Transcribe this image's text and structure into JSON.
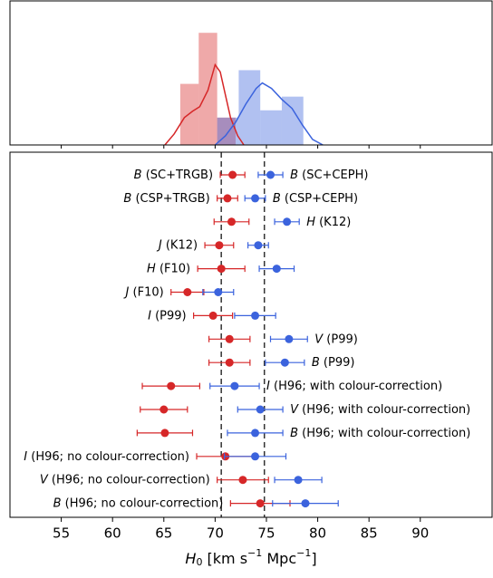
{
  "chart_data": [
    {
      "type": "histogram",
      "xlim": [
        50,
        97
      ],
      "xticks": [
        55,
        60,
        65,
        70,
        75,
        80,
        85,
        90
      ],
      "ylim": [
        0,
        158
      ],
      "alpha": 0.4,
      "series": [
        {
          "color": "#d62728",
          "bins": [
            66.6,
            68.4,
            70.2,
            72.0
          ],
          "counts": [
            67,
            123,
            30
          ],
          "kde": {
            "x": [
              65.1,
              66,
              67,
              67.8,
              68.5,
              69.3,
              70.0,
              70.5,
              71,
              71.5,
              72.2,
              72.8
            ],
            "y": [
              0,
              12,
              30,
              37,
              42,
              60,
              88,
              80,
              55,
              30,
              10,
              0
            ]
          }
        },
        {
          "color": "#3b63dd",
          "bins": [
            70.2,
            72.3,
            74.4,
            76.5,
            78.6
          ],
          "counts": [
            30,
            82,
            38,
            53
          ],
          "kde": {
            "x": [
              70,
              71,
              72,
              73,
              74,
              74.6,
              75.5,
              76.5,
              77.5,
              78.5,
              79.5,
              80.5
            ],
            "y": [
              0,
              10,
              25,
              45,
              62,
              68,
              62,
              50,
              40,
              22,
              6,
              0
            ]
          }
        }
      ]
    },
    {
      "type": "errorbar",
      "xlim": [
        50,
        97
      ],
      "xticks": [
        55,
        60,
        65,
        70,
        75,
        80,
        85,
        90
      ],
      "xlabel": [
        "H",
        "0",
        " [km s",
        "−1",
        " Mpc",
        "−1",
        "]"
      ],
      "vlines": [
        70.6,
        74.8
      ],
      "colors": [
        "#d62728",
        "#3b63dd"
      ],
      "rows": [
        {
          "labels": [
            {
              "side": "left",
              "band": "B",
              "name": "(SC+TRGB)"
            },
            {
              "side": "right",
              "band": "B",
              "name": "(SC+CEPH)"
            }
          ],
          "points": [
            {
              "value": 71.7,
              "err": 1.2
            },
            {
              "value": 75.4,
              "err": 1.2
            }
          ]
        },
        {
          "labels": [
            {
              "side": "left",
              "band": "B",
              "name": "(CSP+TRGB)"
            },
            {
              "side": "right",
              "band": "B",
              "name": "(CSP+CEPH)"
            }
          ],
          "points": [
            {
              "value": 71.2,
              "err": 1.0
            },
            {
              "value": 73.9,
              "err": 1.0
            }
          ]
        },
        {
          "labels": [
            {
              "side": "right",
              "band": "H",
              "name": "(K12)"
            }
          ],
          "points": [
            {
              "value": 71.6,
              "err": 1.7
            },
            {
              "value": 77.0,
              "err": 1.2
            }
          ]
        },
        {
          "labels": [
            {
              "side": "left",
              "band": "J",
              "name": "(K12)"
            }
          ],
          "points": [
            {
              "value": 70.4,
              "err": 1.4
            },
            {
              "value": 74.2,
              "err": 1.0
            }
          ]
        },
        {
          "labels": [
            {
              "side": "left",
              "band": "H",
              "name": "(F10)"
            }
          ],
          "points": [
            {
              "value": 70.6,
              "err": 2.3
            },
            {
              "value": 76.0,
              "err": 1.7
            }
          ]
        },
        {
          "labels": [
            {
              "side": "left",
              "band": "J",
              "name": "(F10)"
            }
          ],
          "points": [
            {
              "value": 67.3,
              "err": 1.6
            },
            {
              "value": 70.3,
              "err": 1.5
            }
          ]
        },
        {
          "labels": [
            {
              "side": "left",
              "band": "I",
              "name": "(P99)"
            }
          ],
          "points": [
            {
              "value": 69.8,
              "err": 1.9
            },
            {
              "value": 73.9,
              "err": 2.0
            }
          ]
        },
        {
          "labels": [
            {
              "side": "right",
              "band": "V",
              "name": "(P99)"
            }
          ],
          "points": [
            {
              "value": 71.4,
              "err": 2.0
            },
            {
              "value": 77.2,
              "err": 1.8
            }
          ]
        },
        {
          "labels": [
            {
              "side": "right",
              "band": "B",
              "name": "(P99)"
            }
          ],
          "points": [
            {
              "value": 71.4,
              "err": 2.0
            },
            {
              "value": 76.8,
              "err": 1.9
            }
          ]
        },
        {
          "labels": [
            {
              "side": "right",
              "band": "I",
              "name": "(H96; with colour-correction)"
            }
          ],
          "points": [
            {
              "value": 65.7,
              "err": 2.8
            },
            {
              "value": 71.9,
              "err": 2.4
            }
          ]
        },
        {
          "labels": [
            {
              "side": "right",
              "band": "V",
              "name": "(H96; with colour-correction)"
            }
          ],
          "points": [
            {
              "value": 65.0,
              "err": 2.3
            },
            {
              "value": 74.4,
              "err": 2.2
            }
          ]
        },
        {
          "labels": [
            {
              "side": "right",
              "band": "B",
              "name": "(H96; with colour-correction)"
            }
          ],
          "points": [
            {
              "value": 65.1,
              "err": 2.7
            },
            {
              "value": 73.9,
              "err": 2.7
            }
          ]
        },
        {
          "labels": [
            {
              "side": "left",
              "band": "I",
              "name": "(H96; no colour-correction)"
            }
          ],
          "points": [
            {
              "value": 71.0,
              "err": 2.8
            },
            {
              "value": 73.9,
              "err": 3.0
            }
          ]
        },
        {
          "labels": [
            {
              "side": "left",
              "band": "V",
              "name": "(H96; no colour-correction)"
            }
          ],
          "points": [
            {
              "value": 72.7,
              "err": 2.5
            },
            {
              "value": 78.1,
              "err": 2.3
            }
          ]
        },
        {
          "labels": [
            {
              "side": "left",
              "band": "B",
              "name": "(H96; no colour-correction)"
            }
          ],
          "points": [
            {
              "value": 74.4,
              "err": 2.9
            },
            {
              "value": 78.8,
              "err": 3.2
            }
          ]
        }
      ]
    }
  ]
}
